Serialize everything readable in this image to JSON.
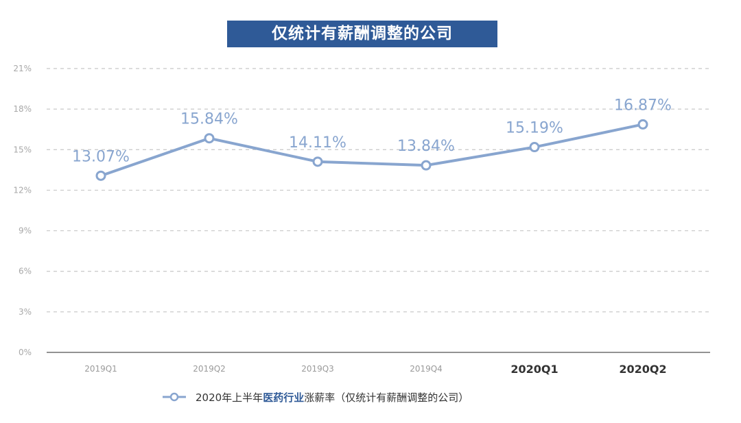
{
  "title": "仅统计有薪酬调整的公司",
  "legend": {
    "prefix": "2020年上半年 ",
    "highlight": "医药行业",
    "suffix": " 涨薪率（仅统计有薪酬调整的公司）"
  },
  "colors": {
    "banner": "#2f5a97",
    "line": "#88a5cf",
    "grid": "#c8c8c8"
  },
  "chart_data": {
    "type": "line",
    "categories": [
      "2019Q1",
      "2019Q2",
      "2019Q3",
      "2019Q4",
      "2020Q1",
      "2020Q2"
    ],
    "bold_categories": [
      "2020Q1",
      "2020Q2"
    ],
    "values": [
      13.07,
      15.84,
      14.11,
      13.84,
      15.19,
      16.87
    ],
    "labels": [
      "13.07%",
      "15.84%",
      "14.11%",
      "13.84%",
      "15.19%",
      "16.87%"
    ],
    "yticks": [
      "0%",
      "3%",
      "6%",
      "9%",
      "12%",
      "15%",
      "18%",
      "21%"
    ],
    "ylim": [
      0,
      21
    ],
    "grid": true,
    "legend_position": "bottom"
  }
}
